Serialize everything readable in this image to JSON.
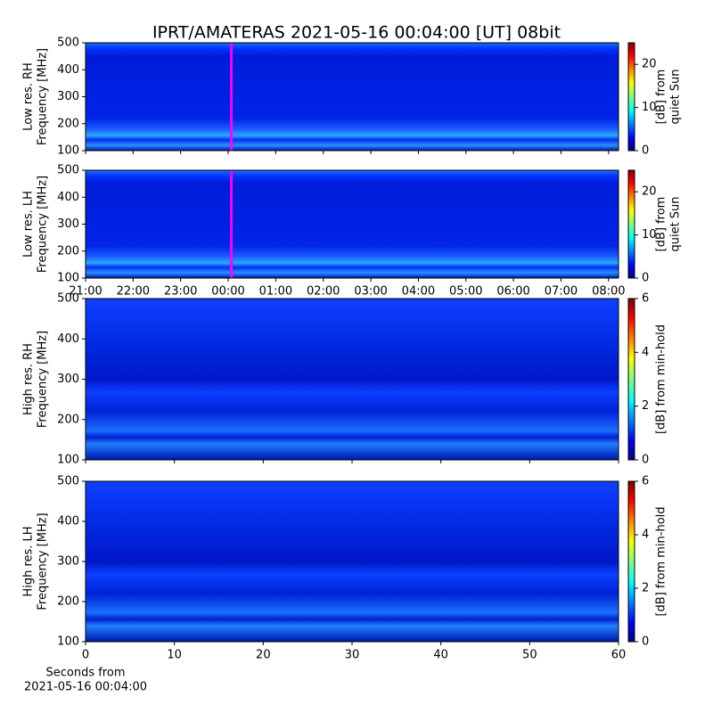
{
  "chart_data": [
    {
      "type": "heatmap",
      "title": "IPRT/AMATERAS 2021-05-16 00:04:00 [UT]   08bit",
      "ylabel": [
        "Low res. RH",
        "Frequency [MHz]"
      ],
      "xlim": [
        21,
        32.21
      ],
      "ylim": [
        100,
        500
      ],
      "yticks": [
        100,
        200,
        300,
        400,
        500
      ],
      "xticks": [
        {
          "value": 21,
          "label": "21:00"
        },
        {
          "value": 22,
          "label": "22:00"
        },
        {
          "value": 23,
          "label": "23:00"
        },
        {
          "value": 24,
          "label": "00:00"
        },
        {
          "value": 25,
          "label": "01:00"
        },
        {
          "value": 26,
          "label": "02:00"
        },
        {
          "value": 27,
          "label": "03:00"
        },
        {
          "value": 28,
          "label": "04:00"
        },
        {
          "value": 29,
          "label": "05:00"
        },
        {
          "value": 30,
          "label": "06:00"
        },
        {
          "value": 31,
          "label": "07:00"
        },
        {
          "value": 32,
          "label": "08:00"
        }
      ],
      "show_xtick_labels": false,
      "vline": 24.0667,
      "vline_color": "#ff00ff",
      "clim": [
        0,
        25
      ],
      "cticks": [
        0,
        10,
        20
      ],
      "clabel": [
        "[dB] from",
        "quiet Sun"
      ]
    },
    {
      "type": "heatmap",
      "ylabel": [
        "Low res. LH",
        "Frequency [MHz]"
      ],
      "xlim": [
        21,
        32.21
      ],
      "ylim": [
        100,
        500
      ],
      "yticks": [
        100,
        200,
        300,
        400,
        500
      ],
      "xticks": [
        {
          "value": 21,
          "label": "21:00"
        },
        {
          "value": 22,
          "label": "22:00"
        },
        {
          "value": 23,
          "label": "23:00"
        },
        {
          "value": 24,
          "label": "00:00"
        },
        {
          "value": 25,
          "label": "01:00"
        },
        {
          "value": 26,
          "label": "02:00"
        },
        {
          "value": 27,
          "label": "03:00"
        },
        {
          "value": 28,
          "label": "04:00"
        },
        {
          "value": 29,
          "label": "05:00"
        },
        {
          "value": 30,
          "label": "06:00"
        },
        {
          "value": 31,
          "label": "07:00"
        },
        {
          "value": 32,
          "label": "08:00"
        }
      ],
      "show_xtick_labels": true,
      "vline": 24.0667,
      "vline_color": "#ff00ff",
      "clim": [
        0,
        25
      ],
      "cticks": [
        0,
        10,
        20
      ],
      "clabel": [
        "[dB] from",
        "quiet Sun"
      ]
    },
    {
      "type": "heatmap",
      "ylabel": [
        "High res. RH",
        "Frequency [MHz]"
      ],
      "xlim": [
        0,
        60
      ],
      "ylim": [
        100,
        500
      ],
      "yticks": [
        100,
        200,
        300,
        400,
        500
      ],
      "xticks": [
        0,
        10,
        20,
        30,
        40,
        50,
        60
      ],
      "show_xtick_labels": false,
      "clim": [
        0,
        6
      ],
      "cticks": [
        0,
        2,
        4,
        6
      ],
      "clabel": [
        "[dB] from min-hold"
      ]
    },
    {
      "type": "heatmap",
      "ylabel": [
        "High res. LH",
        "Frequency [MHz]"
      ],
      "xlim": [
        0,
        60
      ],
      "ylim": [
        100,
        500
      ],
      "yticks": [
        100,
        200,
        300,
        400,
        500
      ],
      "xticks": [
        0,
        10,
        20,
        30,
        40,
        50,
        60
      ],
      "show_xtick_labels": true,
      "xlabel": [
        "Seconds from",
        "2021-05-16 00:04:00"
      ],
      "clim": [
        0,
        6
      ],
      "cticks": [
        0,
        2,
        4,
        6
      ],
      "clabel": [
        "[dB] from min-hold"
      ]
    }
  ]
}
